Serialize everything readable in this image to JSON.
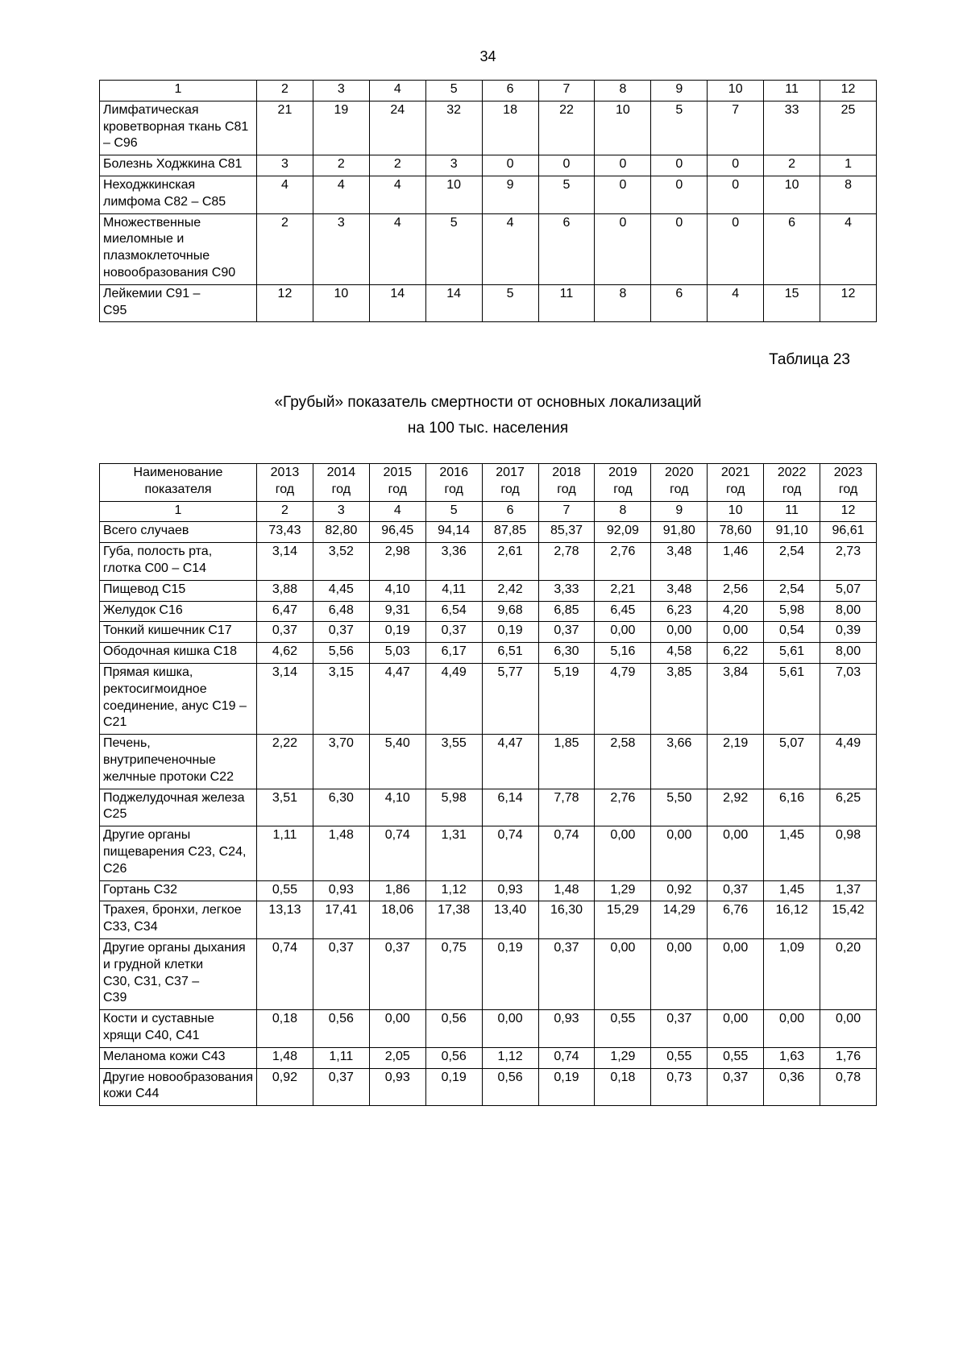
{
  "page": {
    "number": "34"
  },
  "table1": {
    "col_numbers": [
      "1",
      "2",
      "3",
      "4",
      "5",
      "6",
      "7",
      "8",
      "9",
      "10",
      "11",
      "12"
    ],
    "rows": [
      {
        "label": "Лимфатическая кроветворная ткань С81 – С96",
        "values": [
          "21",
          "19",
          "24",
          "32",
          "18",
          "22",
          "10",
          "5",
          "7",
          "33",
          "25"
        ]
      },
      {
        "label": "Болезнь Ходжкина С81",
        "values": [
          "3",
          "2",
          "2",
          "3",
          "0",
          "0",
          "0",
          "0",
          "0",
          "2",
          "1"
        ]
      },
      {
        "label": "Неходжкинская лимфома С82 – С85",
        "values": [
          "4",
          "4",
          "4",
          "10",
          "9",
          "5",
          "0",
          "0",
          "0",
          "10",
          "8"
        ]
      },
      {
        "label": "Множественные миеломные и плазмоклеточные новообразования С90",
        "values": [
          "2",
          "3",
          "4",
          "5",
          "4",
          "6",
          "0",
          "0",
          "0",
          "6",
          "4"
        ]
      },
      {
        "label": "Лейкемии С91 –\nС95",
        "values": [
          "12",
          "10",
          "14",
          "14",
          "5",
          "11",
          "8",
          "6",
          "4",
          "15",
          "12"
        ]
      }
    ]
  },
  "caption": "Таблица 23",
  "title": {
    "line1": "«Грубый» показатель смертности от основных локализаций",
    "line2": "на 100 тыс. населения"
  },
  "table2": {
    "header_label": "Наименование\nпоказателя",
    "years": [
      "2013\nгод",
      "2014\nгод",
      "2015\nгод",
      "2016\nгод",
      "2017\nгод",
      "2018\nгод",
      "2019\nгод",
      "2020\nгод",
      "2021\nгод",
      "2022\nгод",
      "2023\nгод"
    ],
    "col_numbers": [
      "1",
      "2",
      "3",
      "4",
      "5",
      "6",
      "7",
      "8",
      "9",
      "10",
      "11",
      "12"
    ],
    "rows": [
      {
        "label": "Всего случаев",
        "values": [
          "73,43",
          "82,80",
          "96,45",
          "94,14",
          "87,85",
          "85,37",
          "92,09",
          "91,80",
          "78,60",
          "91,10",
          "96,61"
        ]
      },
      {
        "label": "Губа, полость рта, глотка С00 – С14",
        "values": [
          "3,14",
          "3,52",
          "2,98",
          "3,36",
          "2,61",
          "2,78",
          "2,76",
          "3,48",
          "1,46",
          "2,54",
          "2,73"
        ]
      },
      {
        "label": "Пищевод С15",
        "values": [
          "3,88",
          "4,45",
          "4,10",
          "4,11",
          "2,42",
          "3,33",
          "2,21",
          "3,48",
          "2,56",
          "2,54",
          "5,07"
        ]
      },
      {
        "label": "Желудок С16",
        "values": [
          "6,47",
          "6,48",
          "9,31",
          "6,54",
          "9,68",
          "6,85",
          "6,45",
          "6,23",
          "4,20",
          "5,98",
          "8,00"
        ]
      },
      {
        "label": "Тонкий кишечник С17",
        "values": [
          "0,37",
          "0,37",
          "0,19",
          "0,37",
          "0,19",
          "0,37",
          "0,00",
          "0,00",
          "0,00",
          "0,54",
          "0,39"
        ]
      },
      {
        "label": "Ободочная кишка С18",
        "values": [
          "4,62",
          "5,56",
          "5,03",
          "6,17",
          "6,51",
          "6,30",
          "5,16",
          "4,58",
          "6,22",
          "5,61",
          "8,00"
        ]
      },
      {
        "label": "Прямая кишка, ректосигмоидное соединение, анус С19 – С21",
        "values": [
          "3,14",
          "3,15",
          "4,47",
          "4,49",
          "5,77",
          "5,19",
          "4,79",
          "3,85",
          "3,84",
          "5,61",
          "7,03"
        ]
      },
      {
        "label": "Печень, внутрипеченочные желчные протоки С22",
        "values": [
          "2,22",
          "3,70",
          "5,40",
          "3,55",
          "4,47",
          "1,85",
          "2,58",
          "3,66",
          "2,19",
          "5,07",
          "4,49"
        ]
      },
      {
        "label": "Поджелудочная железа С25",
        "values": [
          "3,51",
          "6,30",
          "4,10",
          "5,98",
          "6,14",
          "7,78",
          "2,76",
          "5,50",
          "2,92",
          "6,16",
          "6,25"
        ]
      },
      {
        "label": "Другие органы пищеварения С23, С24, С26",
        "values": [
          "1,11",
          "1,48",
          "0,74",
          "1,31",
          "0,74",
          "0,74",
          "0,00",
          "0,00",
          "0,00",
          "1,45",
          "0,98"
        ]
      },
      {
        "label": "Гортань С32",
        "values": [
          "0,55",
          "0,93",
          "1,86",
          "1,12",
          "0,93",
          "1,48",
          "1,29",
          "0,92",
          "0,37",
          "1,45",
          "1,37"
        ]
      },
      {
        "label": "Трахея, бронхи, легкое С33, С34",
        "values": [
          "13,13",
          "17,41",
          "18,06",
          "17,38",
          "13,40",
          "16,30",
          "15,29",
          "14,29",
          "6,76",
          "16,12",
          "15,42"
        ]
      },
      {
        "label": "Другие органы дыхания и грудной клетки\nС30, С31, С37 –\nС39",
        "values": [
          "0,74",
          "0,37",
          "0,37",
          "0,75",
          "0,19",
          "0,37",
          "0,00",
          "0,00",
          "0,00",
          "1,09",
          "0,20"
        ]
      },
      {
        "label": "Кости и суставные хрящи С40, С41",
        "values": [
          "0,18",
          "0,56",
          "0,00",
          "0,56",
          "0,00",
          "0,93",
          "0,55",
          "0,37",
          "0,00",
          "0,00",
          "0,00"
        ]
      },
      {
        "label": "Меланома кожи С43",
        "values": [
          "1,48",
          "1,11",
          "2,05",
          "0,56",
          "1,12",
          "0,74",
          "1,29",
          "0,55",
          "0,55",
          "1,63",
          "1,76"
        ]
      },
      {
        "label": "Другие новообразования кожи С44",
        "values": [
          "0,92",
          "0,37",
          "0,93",
          "0,19",
          "0,56",
          "0,19",
          "0,18",
          "0,73",
          "0,37",
          "0,36",
          "0,78"
        ]
      }
    ]
  }
}
